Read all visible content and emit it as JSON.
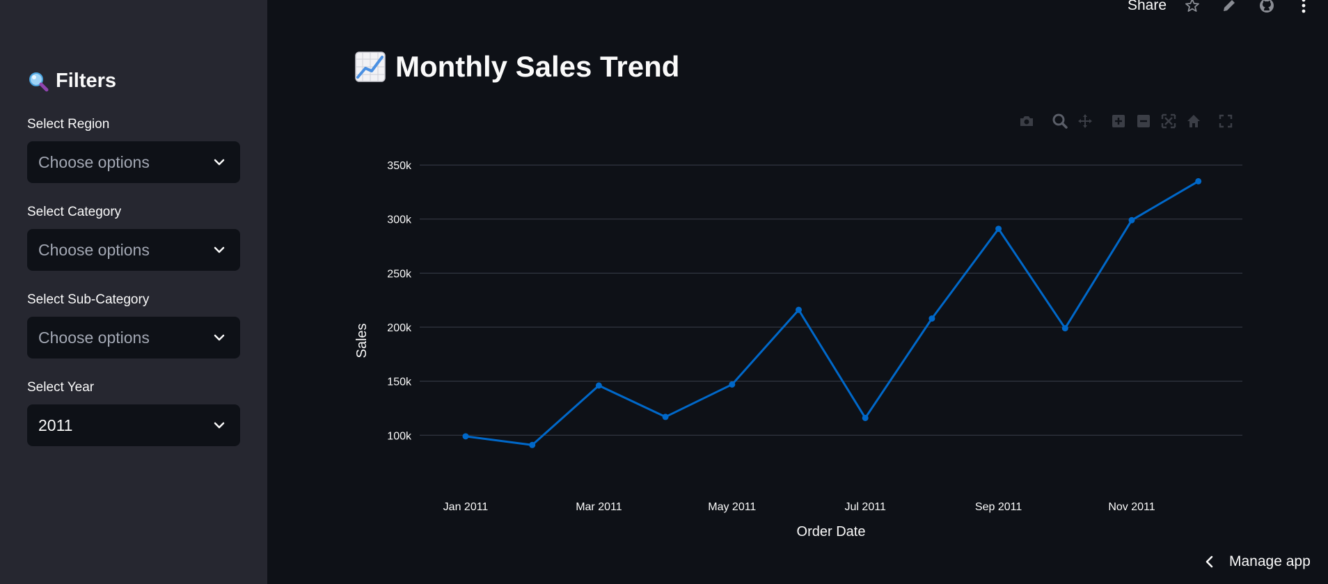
{
  "sidebar": {
    "title": "Filters",
    "title_icon": "magnifier-icon",
    "filters": [
      {
        "label": "Select Region",
        "placeholder": "Choose options"
      },
      {
        "label": "Select Category",
        "placeholder": "Choose options"
      },
      {
        "label": "Select Sub-Category",
        "placeholder": "Choose options"
      },
      {
        "label": "Select Year",
        "value": "2011"
      }
    ]
  },
  "header": {
    "share_label": "Share",
    "icons": [
      "star-icon",
      "pencil-icon",
      "github-icon",
      "more-vertical-icon"
    ]
  },
  "main": {
    "title": "Monthly Sales Trend",
    "title_icon": "chart-increasing-icon"
  },
  "modebar": {
    "icons": [
      "camera-icon",
      "zoom-icon",
      "pan-icon",
      "zoom-in-icon",
      "zoom-out-icon",
      "autoscale-icon",
      "home-icon",
      "fullscreen-icon"
    ]
  },
  "footer": {
    "manage_app_label": "Manage app"
  },
  "colors": {
    "background": "#0e1117",
    "sidebar": "#262730",
    "line": "#0068c9",
    "grid": "#3a3f4b"
  },
  "chart_data": {
    "type": "line",
    "xlabel": "Order Date",
    "ylabel": "Sales",
    "x": [
      "Jan 2011",
      "Feb 2011",
      "Mar 2011",
      "Apr 2011",
      "May 2011",
      "Jun 2011",
      "Jul 2011",
      "Aug 2011",
      "Sep 2011",
      "Oct 2011",
      "Nov 2011",
      "Dec 2011"
    ],
    "x_tick_labels": [
      "Jan 2011",
      "Mar 2011",
      "May 2011",
      "Jul 2011",
      "Sep 2011",
      "Nov 2011"
    ],
    "y_tick_labels": [
      "100k",
      "150k",
      "200k",
      "250k",
      "300k",
      "350k"
    ],
    "y_ticks": [
      100000,
      150000,
      200000,
      250000,
      300000,
      350000
    ],
    "ylim": [
      68000,
      352000
    ],
    "values": [
      99000,
      91000,
      146000,
      117000,
      147000,
      216000,
      116000,
      208000,
      291000,
      199000,
      299000,
      335000
    ],
    "grid": true,
    "line_color": "#0068c9"
  }
}
